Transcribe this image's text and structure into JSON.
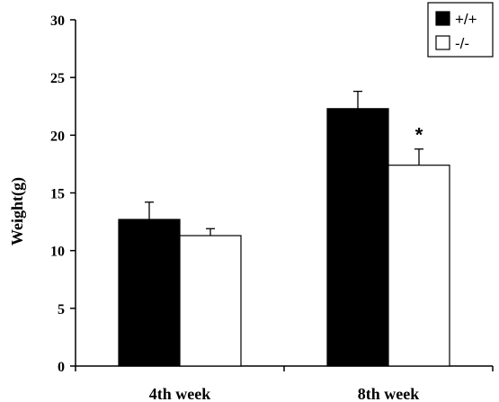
{
  "chart_data": {
    "type": "bar",
    "categories": [
      "4th week",
      "8th week"
    ],
    "series": [
      {
        "name": "+/+",
        "values": [
          12.7,
          22.3
        ],
        "errors": [
          1.5,
          1.5
        ],
        "color": "#000000"
      },
      {
        "name": "-/-",
        "values": [
          11.3,
          17.4
        ],
        "errors": [
          0.6,
          1.4
        ],
        "color": "#ffffff"
      }
    ],
    "ylabel": "Weight(g)",
    "xlabel": "",
    "ylim": [
      0,
      30
    ],
    "yticks": [
      0,
      5,
      10,
      15,
      20,
      25,
      30
    ],
    "annotations": [
      {
        "text": "*",
        "category": "8th week",
        "series": "-/-"
      }
    ],
    "legend": "top-right",
    "grid": false
  }
}
